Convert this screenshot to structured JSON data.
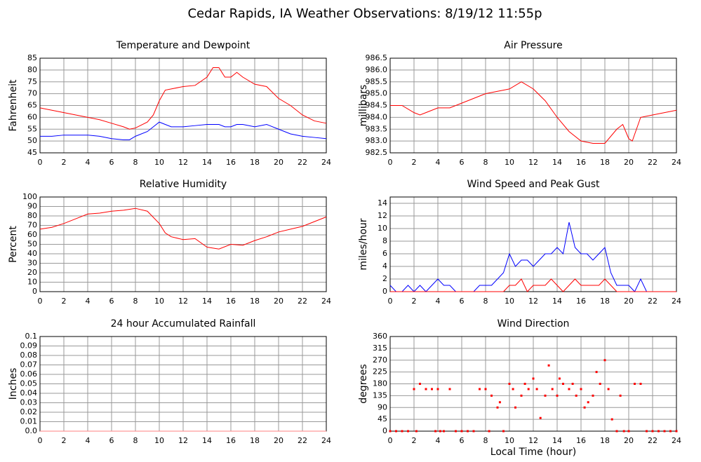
{
  "page_title": "Cedar Rapids, IA Weather Observations: 8/19/12 11:55p",
  "chart_data": [
    {
      "type": "line",
      "title": "Temperature and Dewpoint",
      "ylabel": "Fahrenheit",
      "x": [
        0,
        1,
        2,
        3,
        4,
        5,
        6,
        7,
        7.5,
        8,
        9,
        9.5,
        10,
        10.5,
        11,
        12,
        13,
        14,
        14.5,
        15,
        15.5,
        16,
        16.5,
        17,
        18,
        19,
        20,
        21,
        22,
        23,
        24
      ],
      "xlim": [
        0,
        24
      ],
      "xticks": [
        0,
        2,
        4,
        6,
        8,
        10,
        12,
        14,
        16,
        18,
        20,
        22,
        24
      ],
      "ylim": [
        45,
        85
      ],
      "yticks": [
        45,
        50,
        55,
        60,
        65,
        70,
        75,
        80,
        85
      ],
      "grid": true,
      "series": [
        {
          "color": "#ff0000",
          "values": [
            64,
            63,
            62,
            61,
            60,
            59,
            57.5,
            56,
            55,
            55.5,
            58,
            61,
            67,
            71.5,
            72,
            73,
            73.5,
            77,
            81,
            81,
            77,
            77,
            79,
            77,
            74,
            73,
            68,
            65,
            61,
            58.5,
            57.5
          ]
        },
        {
          "color": "#0000ff",
          "values": [
            52,
            52,
            52.5,
            52.5,
            52.5,
            52,
            51,
            50.5,
            50.5,
            52,
            54,
            56,
            58,
            57,
            56,
            56,
            56.5,
            57,
            57,
            57,
            56,
            56,
            57,
            57,
            56,
            57,
            55,
            53,
            52,
            51.5,
            51
          ]
        }
      ]
    },
    {
      "type": "line",
      "title": "Air Pressure",
      "ylabel": "millibars",
      "x": [
        0,
        1,
        2,
        2.5,
        3,
        4,
        5,
        6,
        7,
        8,
        9,
        10,
        11,
        12,
        13,
        14,
        15,
        16,
        17,
        18,
        19,
        19.5,
        20,
        20.3,
        21,
        22,
        23,
        24
      ],
      "xlim": [
        0,
        24
      ],
      "xticks": [
        0,
        2,
        4,
        6,
        8,
        10,
        12,
        14,
        16,
        18,
        20,
        22,
        24
      ],
      "ylim": [
        982.5,
        986.5
      ],
      "yticks": [
        982.5,
        {
          "value": 983,
          "label": "983.0"
        },
        983.5,
        {
          "value": 984,
          "label": "984.0"
        },
        984.5,
        {
          "value": 985,
          "label": "985.0"
        },
        985.5,
        {
          "value": 986,
          "label": "986.0"
        },
        986.5
      ],
      "grid": true,
      "series": [
        {
          "color": "#ff0000",
          "values": [
            984.5,
            984.5,
            984.2,
            984.1,
            984.2,
            984.4,
            984.4,
            984.6,
            984.8,
            985.0,
            985.1,
            985.2,
            985.5,
            985.2,
            984.7,
            984.0,
            983.4,
            983.0,
            982.9,
            982.9,
            983.5,
            983.7,
            983.1,
            983.0,
            984.0,
            984.1,
            984.2,
            984.3
          ]
        }
      ]
    },
    {
      "type": "line",
      "title": "Relative Humidity",
      "ylabel": "Percent",
      "x": [
        0,
        1,
        2,
        3,
        4,
        5,
        6,
        7,
        8,
        9,
        10,
        10.5,
        11,
        12,
        13,
        14,
        15,
        16,
        17,
        18,
        19,
        20,
        21,
        22,
        23,
        24
      ],
      "xlim": [
        0,
        24
      ],
      "xticks": [
        0,
        2,
        4,
        6,
        8,
        10,
        12,
        14,
        16,
        18,
        20,
        22,
        24
      ],
      "ylim": [
        0,
        100
      ],
      "yticks": [
        0,
        10,
        20,
        30,
        40,
        50,
        60,
        70,
        80,
        90,
        100
      ],
      "grid": true,
      "series": [
        {
          "color": "#ff0000",
          "values": [
            66,
            68,
            72,
            77,
            82,
            83,
            85,
            86,
            88,
            85,
            72,
            62,
            58,
            55,
            56,
            47,
            45,
            50,
            49,
            54,
            58,
            63,
            66,
            69,
            74,
            79
          ]
        }
      ]
    },
    {
      "type": "line",
      "title": "Wind Speed and Peak Gust",
      "ylabel": "miles/hour",
      "x": [
        0,
        0.5,
        1,
        1.5,
        2,
        2.5,
        3,
        3.5,
        4,
        4.5,
        5,
        5.5,
        6,
        6.5,
        7,
        7.5,
        8,
        8.5,
        9,
        9.5,
        10,
        10.5,
        11,
        11.5,
        12,
        12.5,
        13,
        13.5,
        14,
        14.5,
        15,
        15.5,
        16,
        16.5,
        17,
        17.5,
        18,
        18.5,
        19,
        19.5,
        20,
        20.5,
        21,
        21.5,
        22,
        22.5,
        23,
        23.5,
        24
      ],
      "xlim": [
        0,
        24
      ],
      "xticks": [
        0,
        2,
        4,
        6,
        8,
        10,
        12,
        14,
        16,
        18,
        20,
        22,
        24
      ],
      "ylim": [
        0,
        15
      ],
      "yticks": [
        0,
        2,
        4,
        6,
        8,
        10,
        12,
        14
      ],
      "grid": true,
      "series": [
        {
          "color": "#0000ff",
          "values": [
            1,
            0,
            0,
            1,
            0,
            1,
            0,
            1,
            2,
            1,
            1,
            0,
            0,
            0,
            0,
            1,
            1,
            1,
            2,
            3,
            6,
            4,
            5,
            5,
            4,
            5,
            6,
            6,
            7,
            6,
            11,
            7,
            6,
            6,
            5,
            6,
            7,
            3,
            1,
            1,
            1,
            0,
            2,
            0,
            0,
            0,
            0,
            0,
            0
          ]
        },
        {
          "color": "#ff0000",
          "values": [
            0,
            0,
            0,
            0,
            0,
            0,
            0,
            0,
            0,
            0,
            0,
            0,
            0,
            0,
            0,
            0,
            0,
            0,
            0,
            0,
            1,
            1,
            2,
            0,
            1,
            1,
            1,
            2,
            1,
            0,
            1,
            2,
            1,
            1,
            1,
            1,
            2,
            1,
            0,
            0,
            0,
            0,
            0,
            0,
            0,
            0,
            0,
            0,
            0
          ]
        }
      ]
    },
    {
      "type": "line",
      "title": "24 hour Accumulated Rainfall",
      "ylabel": "Inches",
      "x": [
        0,
        24
      ],
      "xlim": [
        0,
        24
      ],
      "xticks": [
        0,
        2,
        4,
        6,
        8,
        10,
        12,
        14,
        16,
        18,
        20,
        22,
        24
      ],
      "ylim": [
        0,
        0.1
      ],
      "yticks": [
        {
          "value": 0,
          "label": "0.0"
        },
        0.01,
        0.02,
        0.03,
        0.04,
        0.05,
        0.06,
        0.07,
        0.08,
        0.09,
        0.1
      ],
      "grid": true,
      "series": [
        {
          "color": "#ff8080",
          "values": [
            0,
            0
          ]
        }
      ]
    },
    {
      "type": "scatter",
      "title": "Wind Direction",
      "ylabel": "degrees",
      "xlabel": "Local Time (hour)",
      "x": [
        0,
        0.5,
        1,
        1.5,
        2,
        2.2,
        2.5,
        3,
        3.5,
        3.8,
        4,
        4.2,
        4.5,
        5,
        5.5,
        6,
        6.5,
        7,
        7.5,
        8,
        8.3,
        8.5,
        9,
        9.2,
        9.5,
        10,
        10.3,
        10.5,
        11,
        11.3,
        11.6,
        12,
        12.3,
        12.6,
        13,
        13.3,
        13.6,
        14,
        14.2,
        14.5,
        15,
        15.3,
        15.6,
        16,
        16.3,
        16.6,
        17,
        17.3,
        17.6,
        18,
        18.3,
        18.6,
        19,
        19.3,
        19.6,
        20,
        20.5,
        21,
        21.5,
        22,
        22.5,
        23,
        23.5,
        24
      ],
      "xlim": [
        0,
        24
      ],
      "xticks": [
        0,
        2,
        4,
        6,
        8,
        10,
        12,
        14,
        16,
        18,
        20,
        22,
        24
      ],
      "ylim": [
        0,
        360
      ],
      "yticks": [
        0,
        45,
        90,
        135,
        180,
        225,
        270,
        315,
        360
      ],
      "grid": true,
      "series": [
        {
          "color": "#ff0000",
          "values": [
            0,
            0,
            0,
            0,
            160,
            0,
            180,
            160,
            160,
            0,
            160,
            0,
            0,
            160,
            0,
            0,
            0,
            0,
            160,
            160,
            0,
            135,
            90,
            110,
            0,
            180,
            160,
            90,
            135,
            180,
            160,
            200,
            160,
            50,
            135,
            250,
            160,
            135,
            200,
            180,
            160,
            180,
            135,
            160,
            90,
            110,
            135,
            225,
            180,
            270,
            160,
            45,
            0,
            135,
            0,
            0,
            180,
            180,
            0,
            0,
            0,
            0,
            0,
            0
          ]
        }
      ]
    }
  ]
}
